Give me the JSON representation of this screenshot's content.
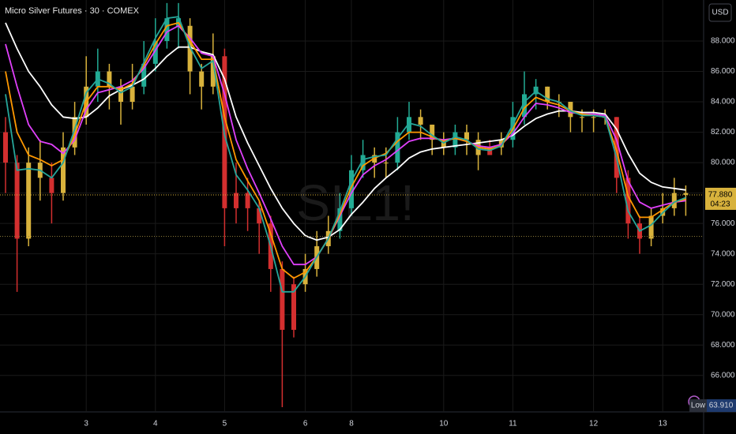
{
  "chart_data": {
    "type": "candlestick",
    "title": "Micro Silver Futures · 30 · COMEX",
    "watermark": "SIL1!",
    "currency": "USD",
    "categories": [
      null,
      null,
      null,
      null,
      null,
      null,
      null,
      "3",
      null,
      null,
      null,
      null,
      null,
      "4",
      null,
      null,
      null,
      null,
      null,
      "5",
      null,
      null,
      null,
      null,
      null,
      null,
      "6",
      null,
      null,
      null,
      "8",
      null,
      null,
      null,
      null,
      null,
      null,
      null,
      "10",
      null,
      null,
      null,
      null,
      null,
      "11",
      null,
      null,
      null,
      null,
      null,
      null,
      "12",
      null,
      null,
      null,
      null,
      null,
      "13",
      null,
      null
    ],
    "open": [
      82,
      80,
      75,
      80,
      79,
      78,
      81,
      83,
      85,
      86,
      85,
      84,
      85,
      86.5,
      88,
      89.5,
      89,
      86,
      85,
      87,
      77,
      78,
      77,
      76,
      73,
      69,
      72,
      73,
      74.5,
      75.5,
      77,
      79.5,
      80.5,
      80,
      80,
      82,
      83,
      82.5,
      81.5,
      81,
      82,
      81.5,
      80.5,
      81,
      81.5,
      83,
      84.5,
      85,
      84,
      84,
      83,
      83,
      83,
      83,
      79,
      76,
      75,
      76.5,
      77,
      78
    ],
    "high": [
      83,
      80.5,
      81,
      81.5,
      80,
      82,
      84,
      87,
      87.5,
      86.5,
      85.5,
      86.5,
      88,
      89.5,
      90.5,
      90.5,
      89.5,
      86.5,
      88.5,
      87.5,
      80,
      79,
      77.5,
      76.5,
      73.5,
      72.5,
      74,
      75.5,
      76.5,
      78,
      80.5,
      81.5,
      81,
      81,
      83,
      84,
      83.5,
      82.5,
      82,
      82.5,
      82.5,
      82,
      81.5,
      82,
      84,
      86,
      85.5,
      85,
      84.5,
      84,
      83.5,
      83.5,
      83.5,
      83,
      79.5,
      76.5,
      77,
      78,
      79,
      78.5
    ],
    "low": [
      78,
      71.5,
      74.5,
      77.5,
      76,
      77.5,
      80.5,
      82.5,
      84,
      83.5,
      82.5,
      83.5,
      84.5,
      86,
      87.5,
      87.5,
      84.5,
      83.5,
      84.5,
      74.5,
      76,
      75.5,
      74,
      71.5,
      63.91,
      68.5,
      71.5,
      72.5,
      74,
      75,
      76.5,
      79,
      79,
      79,
      79.5,
      81.5,
      81.5,
      80.5,
      80.5,
      80.5,
      80.5,
      79.5,
      80.5,
      80.5,
      81,
      82.5,
      83.5,
      83.5,
      83,
      82,
      82,
      82,
      82.5,
      78,
      75,
      74,
      74.5,
      76,
      76.5,
      76.5
    ],
    "close": [
      80,
      75,
      80,
      79,
      78,
      81,
      83,
      85,
      86,
      85,
      84,
      85,
      86.5,
      88,
      89.5,
      89,
      86,
      85,
      87,
      77,
      78,
      77,
      76,
      73,
      69,
      72,
      73,
      74.5,
      75.5,
      77,
      79.5,
      80.5,
      80,
      80,
      82,
      83,
      82.5,
      81.5,
      81,
      82,
      81.5,
      80.5,
      81,
      81.5,
      83,
      84.5,
      85,
      84,
      84,
      83,
      83,
      83,
      83,
      79,
      76,
      75,
      76.5,
      77,
      78,
      77.88
    ],
    "bar_colors": [
      "#d32f2f",
      "#d32f2f",
      "#d8b23c",
      "#d8b23c",
      "#d32f2f",
      "#d8b23c",
      "#d8b23c",
      "#d8b23c",
      "#22ab94",
      "#d8b23c",
      "#d8b23c",
      "#d8b23c",
      "#22ab94",
      "#22ab94",
      "#22ab94",
      "#22ab94",
      "#d8b23c",
      "#d8b23c",
      "#d8b23c",
      "#d32f2f",
      "#d32f2f",
      "#d32f2f",
      "#d32f2f",
      "#d32f2f",
      "#d32f2f",
      "#d32f2f",
      "#d8b23c",
      "#d8b23c",
      "#d8b23c",
      "#22ab94",
      "#22ab94",
      "#22ab94",
      "#d8b23c",
      "#d8b23c",
      "#22ab94",
      "#22ab94",
      "#d8b23c",
      "#d8b23c",
      "#d8b23c",
      "#22ab94",
      "#d8b23c",
      "#d8b23c",
      "#d32f2f",
      "#d8b23c",
      "#22ab94",
      "#22ab94",
      "#22ab94",
      "#d8b23c",
      "#d8b23c",
      "#d8b23c",
      "#d8b23c",
      "#d8b23c",
      "#d8b23c",
      "#d32f2f",
      "#d32f2f",
      "#d32f2f",
      "#d8b23c",
      "#d8b23c",
      "#d8b23c",
      "#d8b23c"
    ],
    "series": [
      {
        "color": "#ffffff",
        "values": [
          89.2,
          87.5,
          86,
          85,
          83.8,
          83,
          82.9,
          83,
          83.6,
          84.4,
          84.8,
          85.1,
          85.5,
          86.2,
          87,
          87.6,
          87.6,
          87.3,
          87.1,
          85.5,
          83,
          81.3,
          79.8,
          78.3,
          77,
          76,
          75.2,
          74.9,
          75.1,
          75.6,
          76.6,
          77.4,
          78.3,
          79,
          79.6,
          80.3,
          80.7,
          80.9,
          81,
          81.1,
          81.2,
          81.3,
          81.4,
          81.5,
          81.8,
          82.4,
          82.9,
          83.2,
          83.4,
          83.4,
          83.3,
          83.3,
          83.2,
          82.2,
          80.6,
          79.3,
          78.7,
          78.4,
          78.3,
          78.2
        ]
      },
      {
        "color": "#e040fb",
        "values": [
          87.8,
          85,
          82.5,
          81.4,
          81.2,
          80.6,
          81.5,
          83.5,
          84.6,
          84.8,
          85,
          85.4,
          86.2,
          87.4,
          88.6,
          89,
          88.2,
          87.2,
          87,
          84.5,
          81.5,
          79.6,
          78,
          76.3,
          74.5,
          73.3,
          73.3,
          73.8,
          75,
          76.5,
          78,
          79.2,
          79.8,
          80.2,
          80.8,
          81.4,
          81.6,
          81.6,
          81.5,
          81.6,
          81.4,
          81.1,
          81,
          81.2,
          81.9,
          83,
          83.9,
          83.8,
          83.6,
          83.3,
          83.2,
          83.2,
          83.1,
          81.5,
          78.8,
          77.4,
          77,
          77.2,
          77.4,
          77.5
        ]
      },
      {
        "color": "#ff9800",
        "values": [
          86,
          82,
          80.5,
          80.2,
          79.8,
          80.2,
          81.8,
          84,
          85,
          85,
          84.8,
          85.2,
          86.4,
          87.8,
          89,
          89.2,
          88,
          86.8,
          86.8,
          83,
          80.2,
          78.8,
          77.5,
          75.3,
          73,
          72.4,
          72.8,
          73.8,
          75,
          76.6,
          78.4,
          79.8,
          80.3,
          80.6,
          81.4,
          82,
          82,
          81.7,
          81.4,
          81.6,
          81.4,
          81,
          80.9,
          81.1,
          82.2,
          83.6,
          84.3,
          84,
          83.8,
          83.4,
          83.2,
          83.1,
          83,
          80.8,
          77.8,
          76.4,
          76.4,
          76.9,
          77.4,
          77.6
        ]
      },
      {
        "color": "#26a69a",
        "values": [
          84.5,
          79.5,
          79.6,
          79.5,
          79,
          80,
          82.2,
          84.6,
          85.5,
          85.2,
          84.6,
          85,
          86.6,
          88.2,
          89.5,
          89.6,
          87.6,
          86.2,
          86.7,
          81.8,
          79.2,
          78.2,
          77,
          74.5,
          71.5,
          71.5,
          72.5,
          73.8,
          75,
          76.8,
          78.8,
          80.2,
          80.4,
          80.5,
          81.6,
          82.6,
          82.4,
          81.8,
          81.3,
          81.7,
          81.5,
          80.9,
          80.8,
          81.1,
          82.5,
          84,
          84.7,
          84.2,
          84,
          83.4,
          83.1,
          83.1,
          83,
          80.3,
          76.8,
          75.5,
          75.9,
          76.7,
          77.4,
          77.7
        ]
      }
    ],
    "ylim": [
      63.6,
      90.7
    ],
    "yticks": [
      {
        "value": 66,
        "label": "66.000"
      },
      {
        "value": 68,
        "label": "68.000"
      },
      {
        "value": 70,
        "label": "70.000"
      },
      {
        "value": 72,
        "label": "72.000"
      },
      {
        "value": 74,
        "label": "74.000"
      },
      {
        "value": 76,
        "label": "76.000"
      },
      {
        "value": 78,
        "label": "78.000"
      },
      {
        "value": 80,
        "label": "80.000"
      },
      {
        "value": 82,
        "label": "82.000"
      },
      {
        "value": 84,
        "label": "84.000"
      },
      {
        "value": 86,
        "label": "86.000"
      },
      {
        "value": 88,
        "label": "88.000"
      }
    ],
    "grid": true,
    "reference_line": 75.15,
    "last_price": {
      "value": 77.88,
      "label": "77.880",
      "countdown": "04:23"
    },
    "low_marker": {
      "label": "Low",
      "value": 63.91,
      "value_label": "63.910"
    }
  }
}
